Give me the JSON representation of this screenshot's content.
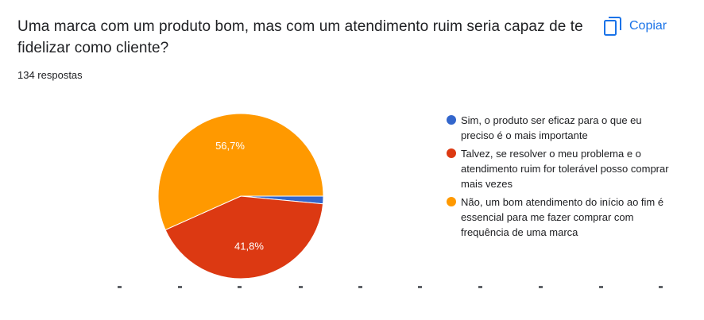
{
  "question": {
    "title": "Uma marca com um produto bom, mas com um atendimento ruim seria capaz de te fidelizar como cliente?",
    "response_count": "134 respostas"
  },
  "toolbar": {
    "copy_label": "Copiar",
    "copy_icon": "copy-icon"
  },
  "chart_data": {
    "type": "pie",
    "categories": [
      "Sim, o produto ser eficaz para o que eu preciso é o mais importante",
      "Talvez, se resolver o meu problema e o atendimento ruim for tolerável posso comprar mais vezes",
      "Não, um bom atendimento do início ao fim é essencial para me fazer comprar com frequência de uma marca"
    ],
    "values": [
      1.5,
      41.8,
      56.7
    ],
    "data_labels": [
      "",
      "41,8%",
      "56,7%"
    ],
    "colors": [
      "#3366cc",
      "#dc3912",
      "#ff9900"
    ],
    "title": "",
    "legend_position": "right"
  }
}
